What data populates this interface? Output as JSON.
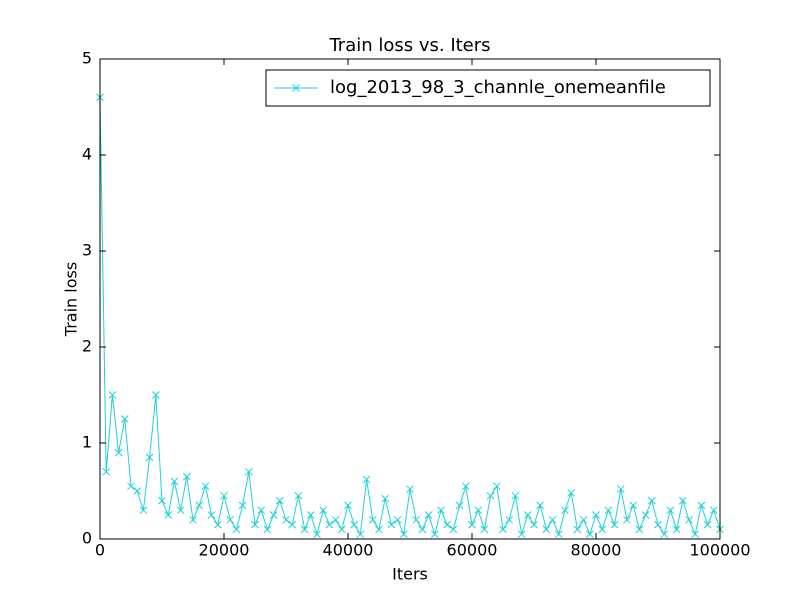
{
  "chart_data": {
    "type": "line",
    "title": "Train loss  vs. Iters",
    "xlabel": "Iters",
    "ylabel": "Train loss",
    "x": [
      0,
      1000,
      2000,
      3000,
      4000,
      5000,
      6000,
      7000,
      8000,
      9000,
      10000,
      11000,
      12000,
      13000,
      14000,
      15000,
      16000,
      17000,
      18000,
      19000,
      20000,
      21000,
      22000,
      23000,
      24000,
      25000,
      26000,
      27000,
      28000,
      29000,
      30000,
      31000,
      32000,
      33000,
      34000,
      35000,
      36000,
      37000,
      38000,
      39000,
      40000,
      41000,
      42000,
      43000,
      44000,
      45000,
      46000,
      47000,
      48000,
      49000,
      50000,
      51000,
      52000,
      53000,
      54000,
      55000,
      56000,
      57000,
      58000,
      59000,
      60000,
      61000,
      62000,
      63000,
      64000,
      65000,
      66000,
      67000,
      68000,
      69000,
      70000,
      71000,
      72000,
      73000,
      74000,
      75000,
      76000,
      77000,
      78000,
      79000,
      80000,
      81000,
      82000,
      83000,
      84000,
      85000,
      86000,
      87000,
      88000,
      89000,
      90000,
      91000,
      92000,
      93000,
      94000,
      95000,
      96000,
      97000,
      98000,
      99000,
      100000
    ],
    "series": [
      {
        "name": "log_2013_98_3_channle_onemeanfile",
        "color": "#1ed2d8",
        "values": [
          4.6,
          0.7,
          1.5,
          0.9,
          1.25,
          0.55,
          0.5,
          0.3,
          0.85,
          1.5,
          0.4,
          0.25,
          0.6,
          0.3,
          0.65,
          0.2,
          0.35,
          0.55,
          0.25,
          0.15,
          0.45,
          0.2,
          0.1,
          0.35,
          0.7,
          0.15,
          0.3,
          0.1,
          0.25,
          0.4,
          0.2,
          0.15,
          0.45,
          0.1,
          0.25,
          0.05,
          0.3,
          0.15,
          0.2,
          0.1,
          0.35,
          0.15,
          0.05,
          0.62,
          0.2,
          0.1,
          0.42,
          0.15,
          0.2,
          0.05,
          0.52,
          0.2,
          0.1,
          0.25,
          0.05,
          0.3,
          0.15,
          0.1,
          0.35,
          0.55,
          0.15,
          0.3,
          0.1,
          0.45,
          0.55,
          0.1,
          0.2,
          0.45,
          0.05,
          0.25,
          0.15,
          0.35,
          0.1,
          0.2,
          0.05,
          0.3,
          0.48,
          0.1,
          0.2,
          0.05,
          0.25,
          0.1,
          0.3,
          0.15,
          0.52,
          0.2,
          0.35,
          0.1,
          0.25,
          0.4,
          0.15,
          0.05,
          0.3,
          0.1,
          0.4,
          0.2,
          0.05,
          0.35,
          0.15,
          0.3,
          0.1
        ]
      }
    ],
    "xlim": [
      0,
      100000
    ],
    "ylim": [
      0,
      5
    ],
    "xticks": [
      0,
      20000,
      40000,
      60000,
      80000,
      100000
    ],
    "yticks": [
      0,
      1,
      2,
      3,
      4,
      5
    ],
    "legend": "upper right"
  }
}
